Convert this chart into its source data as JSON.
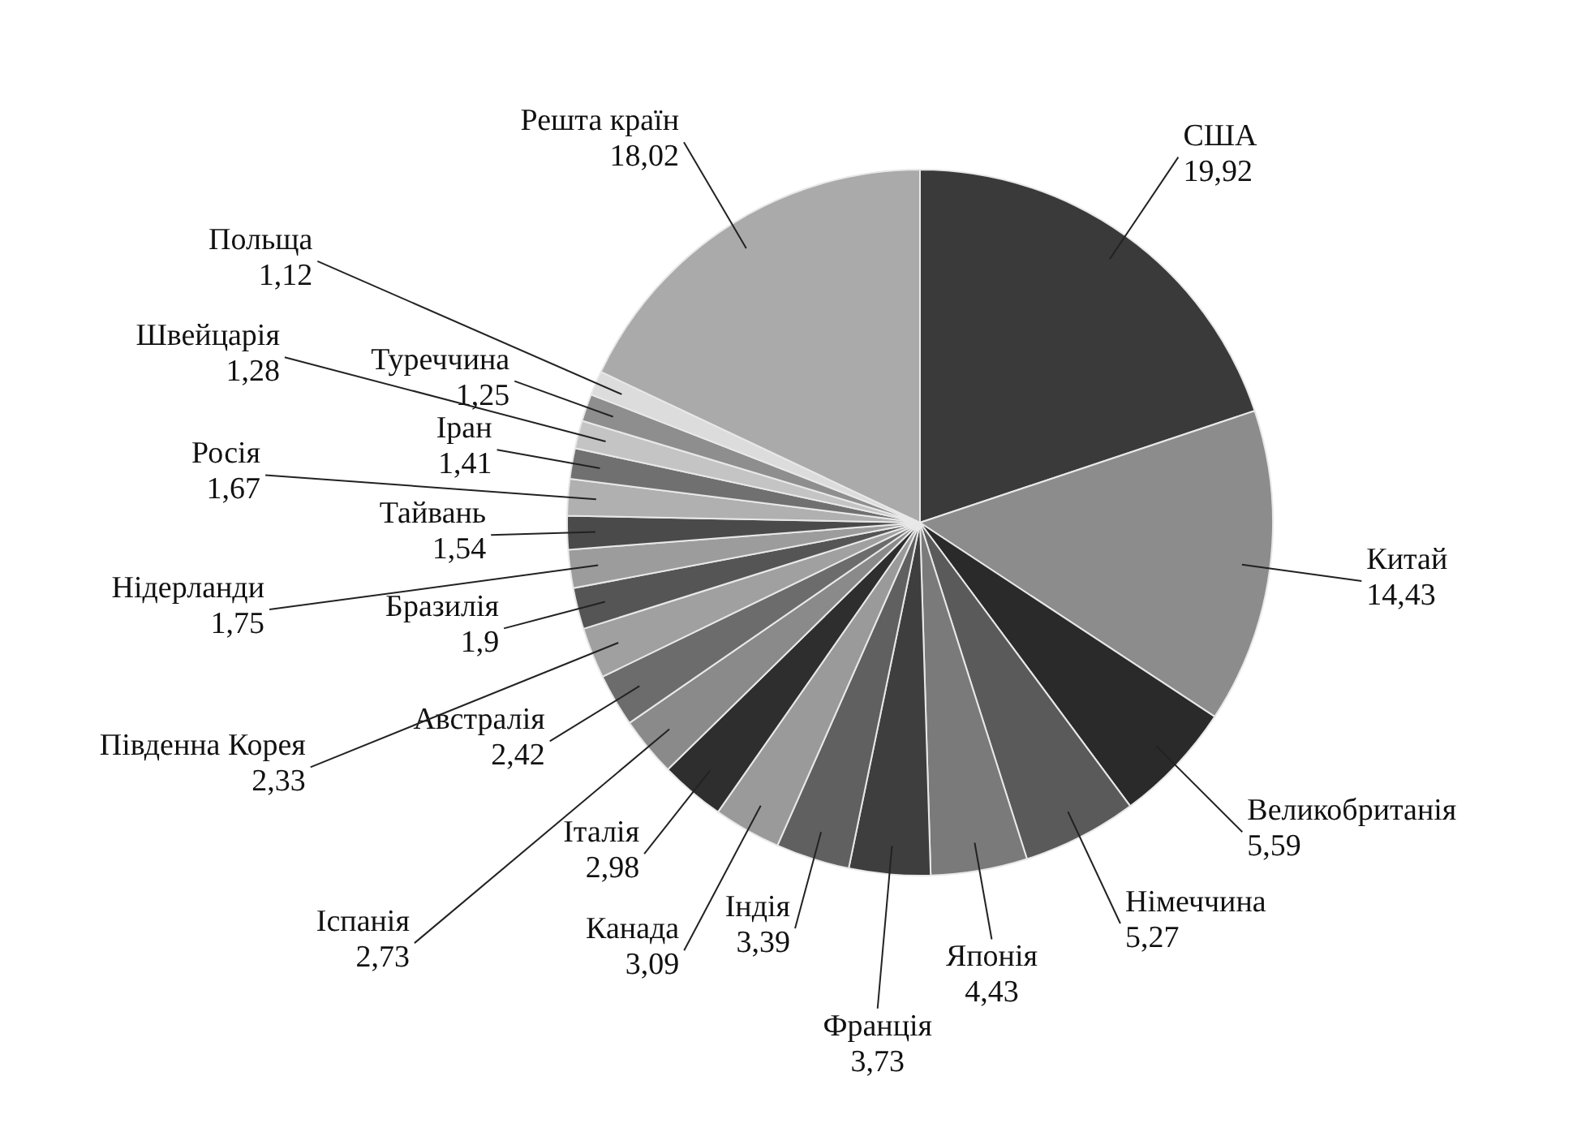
{
  "chart_data": {
    "type": "pie",
    "categories": [
      "США",
      "Китай",
      "Великобританія",
      "Німеччина",
      "Японія",
      "Франція",
      "Індія",
      "Канада",
      "Італія",
      "Іспанія",
      "Австралія",
      "Південна Корея",
      "Бразилія",
      "Нідерланди",
      "Тайвань",
      "Росія",
      "Іран",
      "Швейцарія",
      "Туреччина",
      "Польща",
      "Решта країн"
    ],
    "values": [
      19.92,
      14.43,
      5.59,
      5.27,
      4.43,
      3.73,
      3.39,
      3.09,
      2.98,
      2.73,
      2.42,
      2.33,
      1.9,
      1.75,
      1.54,
      1.67,
      1.41,
      1.28,
      1.25,
      1.12,
      18.02
    ],
    "value_labels": [
      "19,92",
      "14,43",
      "5,59",
      "5,27",
      "4,43",
      "3,73",
      "3,39",
      "3,09",
      "2,98",
      "2,73",
      "2,42",
      "2,33",
      "1,9",
      "1,75",
      "1,54",
      "1,67",
      "1,41",
      "1,28",
      "1,25",
      "1,12",
      "18,02"
    ],
    "colors": [
      "#3a3a3a",
      "#8c8c8c",
      "#2a2a2a",
      "#5a5a5a",
      "#7a7a7a",
      "#3e3e3e",
      "#606060",
      "#9a9a9a",
      "#2e2e2e",
      "#8a8a8a",
      "#6c6c6c",
      "#a0a0a0",
      "#555555",
      "#9c9c9c",
      "#4a4a4a",
      "#b0b0b0",
      "#707070",
      "#c4c4c4",
      "#8e8e8e",
      "#dcdcdc",
      "#aaaaaa"
    ],
    "legend": false
  }
}
